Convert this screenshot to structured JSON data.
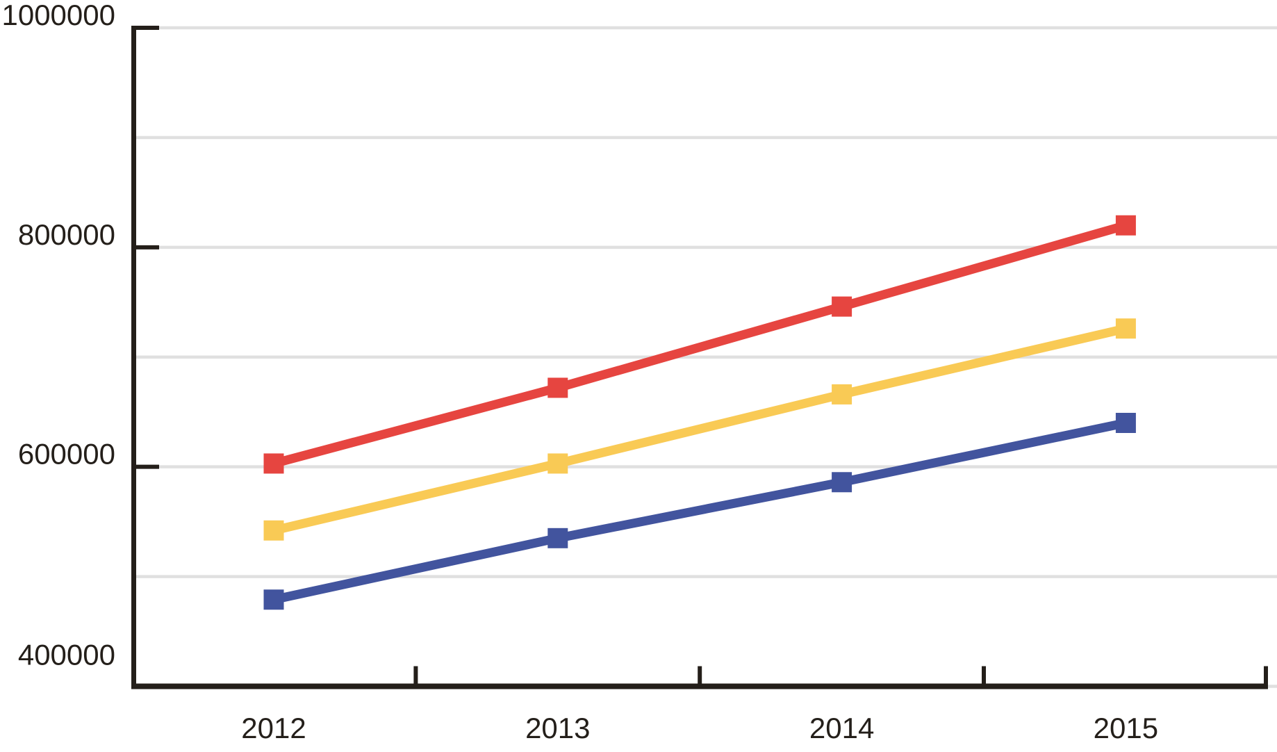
{
  "chart_data": {
    "type": "line",
    "title": "",
    "xlabel": "",
    "ylabel": "",
    "categories": [
      "2012",
      "2013",
      "2014",
      "2015"
    ],
    "series": [
      {
        "name": "red",
        "color": "#e64540",
        "values": [
          603000,
          672000,
          746000,
          820000
        ]
      },
      {
        "name": "yellow",
        "color": "#f9ca55",
        "values": [
          542000,
          603000,
          666000,
          726000
        ]
      },
      {
        "name": "blue",
        "color": "#42549e",
        "values": [
          479000,
          535000,
          586000,
          640000
        ]
      }
    ],
    "ylim": [
      400000,
      1000000
    ],
    "ytick_labels": [
      "400000",
      "600000",
      "800000",
      "1000000"
    ],
    "ytick_values": [
      400000,
      600000,
      800000,
      1000000
    ],
    "gridline_step": 100000,
    "grid": "horizontal",
    "legend": "none",
    "marker": "square",
    "colors": {
      "axis": "#241f1a",
      "gridline": "#e0e0e0",
      "background": "#ffffff"
    }
  }
}
